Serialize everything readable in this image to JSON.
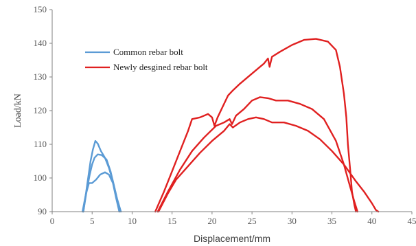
{
  "chart_data": {
    "type": "line",
    "title": "",
    "xlabel": "Displacement/mm",
    "ylabel": "Load/kN",
    "xlim": [
      0,
      45
    ],
    "ylim": [
      90,
      150
    ],
    "xticks": [
      "0",
      "5",
      "10",
      "15",
      "20",
      "25",
      "30",
      "35",
      "40",
      "45"
    ],
    "yticks": [
      "90",
      "100",
      "110",
      "120",
      "130",
      "140",
      "150"
    ],
    "grid": false,
    "legend_position": "top-left",
    "legend": [
      {
        "label": "Common rebar bolt",
        "color": "#5b9bd5"
      },
      {
        "label": "Newly desgined rebar bolt",
        "color": "#e02020"
      }
    ],
    "series": [
      {
        "name": "Common rebar bolt",
        "color": "#5b9bd5",
        "x": [
          3.9,
          4.2,
          4.5,
          4.8,
          5.1,
          5.4,
          5.7,
          6.1,
          6.6,
          7.1,
          7.6,
          8.1,
          8.6
        ],
        "y": [
          90,
          95,
          100,
          105,
          108.5,
          111,
          110.2,
          108,
          106,
          103,
          99,
          94,
          90
        ]
      },
      {
        "name": "Common rebar bolt",
        "color": "#5b9bd5",
        "x": [
          3.9,
          4.3,
          4.7,
          5.0,
          5.3,
          5.7,
          6.2,
          6.8,
          7.3,
          7.7,
          8.1,
          8.4
        ],
        "y": [
          90,
          96,
          101,
          104,
          106,
          107,
          106.8,
          105.5,
          102,
          98,
          94,
          90
        ]
      },
      {
        "name": "Common rebar bolt",
        "color": "#5b9bd5",
        "x": [
          3.8,
          4.2,
          4.6,
          5.0,
          5.5,
          6.0,
          6.6,
          7.1,
          7.6,
          8.0,
          8.4
        ],
        "y": [
          90,
          95,
          98.5,
          98.5,
          99.5,
          101,
          101.7,
          101,
          98.5,
          94,
          90
        ]
      }
    ],
    "series_new": [
      {
        "name": "Newly desgined rebar bolt",
        "color": "#e02020",
        "x": [
          12.9,
          14,
          15,
          16,
          17,
          17.5,
          18.5,
          19.5,
          20,
          20.3,
          20.7,
          21.3,
          22,
          22.6,
          23.5,
          25,
          26.5,
          27,
          27.2,
          27.5,
          28.5,
          30,
          31.5,
          33,
          34.5,
          35.5,
          36,
          36.5,
          36.8,
          37,
          37.3,
          37.5,
          37.8,
          38
        ],
        "y": [
          90,
          96,
          102,
          108,
          114,
          117.5,
          118,
          119,
          118,
          115.5,
          118,
          121,
          124.5,
          126,
          128,
          131,
          134,
          135.5,
          133,
          136,
          137.5,
          139.5,
          141,
          141.3,
          140.5,
          138,
          133,
          125,
          118,
          110,
          102,
          96,
          92,
          90
        ]
      },
      {
        "name": "Newly desgined rebar bolt",
        "color": "#e02020",
        "x": [
          13.2,
          14.5,
          16,
          17.5,
          19,
          20.5,
          21.5,
          22.2,
          22.5,
          23,
          24,
          25,
          26,
          27,
          28,
          29.5,
          31,
          32.5,
          34,
          35.5,
          36.5,
          37.2,
          37.8,
          38.2
        ],
        "y": [
          90,
          96,
          102.5,
          108,
          112,
          115.5,
          116.5,
          117.5,
          116,
          118.5,
          120.5,
          123,
          124,
          123.7,
          123,
          123,
          122,
          120.5,
          117.5,
          111,
          104,
          98,
          93,
          90
        ]
      },
      {
        "name": "Newly desgined rebar bolt",
        "color": "#e02020",
        "x": [
          13.3,
          14.5,
          15.5,
          17,
          18.5,
          20,
          21.5,
          22.2,
          22.6,
          23.5,
          24.5,
          25.5,
          26.5,
          27.5,
          29,
          30.5,
          32,
          33.5,
          35,
          36.5,
          38,
          39,
          40,
          40.5,
          40.8
        ],
        "y": [
          90,
          95.5,
          99.5,
          103.5,
          107.5,
          111,
          114,
          116,
          115,
          116.5,
          117.5,
          118,
          117.5,
          116.5,
          116.5,
          115.5,
          114,
          111.5,
          108,
          104,
          99,
          96,
          92.5,
          90.5,
          90
        ]
      }
    ]
  }
}
